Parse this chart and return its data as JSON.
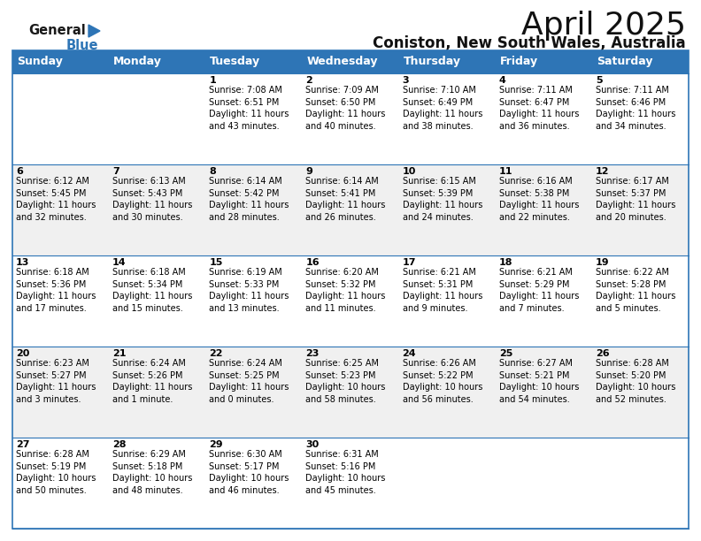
{
  "title": "April 2025",
  "subtitle": "Coniston, New South Wales, Australia",
  "header_color": "#2E75B6",
  "header_text_color": "#FFFFFF",
  "days_of_week": [
    "Sunday",
    "Monday",
    "Tuesday",
    "Wednesday",
    "Thursday",
    "Friday",
    "Saturday"
  ],
  "bg_color": "#FFFFFF",
  "cell_bg_light": "#F0F0F0",
  "cell_bg_white": "#FFFFFF",
  "border_color": "#2E75B6",
  "text_color": "#000000",
  "logo_black": "#1A1A1A",
  "logo_blue": "#2E75B6",
  "calendar_data": [
    [
      "",
      "",
      "1\nSunrise: 7:08 AM\nSunset: 6:51 PM\nDaylight: 11 hours\nand 43 minutes.",
      "2\nSunrise: 7:09 AM\nSunset: 6:50 PM\nDaylight: 11 hours\nand 40 minutes.",
      "3\nSunrise: 7:10 AM\nSunset: 6:49 PM\nDaylight: 11 hours\nand 38 minutes.",
      "4\nSunrise: 7:11 AM\nSunset: 6:47 PM\nDaylight: 11 hours\nand 36 minutes.",
      "5\nSunrise: 7:11 AM\nSunset: 6:46 PM\nDaylight: 11 hours\nand 34 minutes."
    ],
    [
      "6\nSunrise: 6:12 AM\nSunset: 5:45 PM\nDaylight: 11 hours\nand 32 minutes.",
      "7\nSunrise: 6:13 AM\nSunset: 5:43 PM\nDaylight: 11 hours\nand 30 minutes.",
      "8\nSunrise: 6:14 AM\nSunset: 5:42 PM\nDaylight: 11 hours\nand 28 minutes.",
      "9\nSunrise: 6:14 AM\nSunset: 5:41 PM\nDaylight: 11 hours\nand 26 minutes.",
      "10\nSunrise: 6:15 AM\nSunset: 5:39 PM\nDaylight: 11 hours\nand 24 minutes.",
      "11\nSunrise: 6:16 AM\nSunset: 5:38 PM\nDaylight: 11 hours\nand 22 minutes.",
      "12\nSunrise: 6:17 AM\nSunset: 5:37 PM\nDaylight: 11 hours\nand 20 minutes."
    ],
    [
      "13\nSunrise: 6:18 AM\nSunset: 5:36 PM\nDaylight: 11 hours\nand 17 minutes.",
      "14\nSunrise: 6:18 AM\nSunset: 5:34 PM\nDaylight: 11 hours\nand 15 minutes.",
      "15\nSunrise: 6:19 AM\nSunset: 5:33 PM\nDaylight: 11 hours\nand 13 minutes.",
      "16\nSunrise: 6:20 AM\nSunset: 5:32 PM\nDaylight: 11 hours\nand 11 minutes.",
      "17\nSunrise: 6:21 AM\nSunset: 5:31 PM\nDaylight: 11 hours\nand 9 minutes.",
      "18\nSunrise: 6:21 AM\nSunset: 5:29 PM\nDaylight: 11 hours\nand 7 minutes.",
      "19\nSunrise: 6:22 AM\nSunset: 5:28 PM\nDaylight: 11 hours\nand 5 minutes."
    ],
    [
      "20\nSunrise: 6:23 AM\nSunset: 5:27 PM\nDaylight: 11 hours\nand 3 minutes.",
      "21\nSunrise: 6:24 AM\nSunset: 5:26 PM\nDaylight: 11 hours\nand 1 minute.",
      "22\nSunrise: 6:24 AM\nSunset: 5:25 PM\nDaylight: 11 hours\nand 0 minutes.",
      "23\nSunrise: 6:25 AM\nSunset: 5:23 PM\nDaylight: 10 hours\nand 58 minutes.",
      "24\nSunrise: 6:26 AM\nSunset: 5:22 PM\nDaylight: 10 hours\nand 56 minutes.",
      "25\nSunrise: 6:27 AM\nSunset: 5:21 PM\nDaylight: 10 hours\nand 54 minutes.",
      "26\nSunrise: 6:28 AM\nSunset: 5:20 PM\nDaylight: 10 hours\nand 52 minutes."
    ],
    [
      "27\nSunrise: 6:28 AM\nSunset: 5:19 PM\nDaylight: 10 hours\nand 50 minutes.",
      "28\nSunrise: 6:29 AM\nSunset: 5:18 PM\nDaylight: 10 hours\nand 48 minutes.",
      "29\nSunrise: 6:30 AM\nSunset: 5:17 PM\nDaylight: 10 hours\nand 46 minutes.",
      "30\nSunrise: 6:31 AM\nSunset: 5:16 PM\nDaylight: 10 hours\nand 45 minutes.",
      "",
      "",
      ""
    ]
  ],
  "title_fontsize": 26,
  "subtitle_fontsize": 12,
  "header_fontsize": 9,
  "day_num_fontsize": 8,
  "cell_text_fontsize": 7
}
